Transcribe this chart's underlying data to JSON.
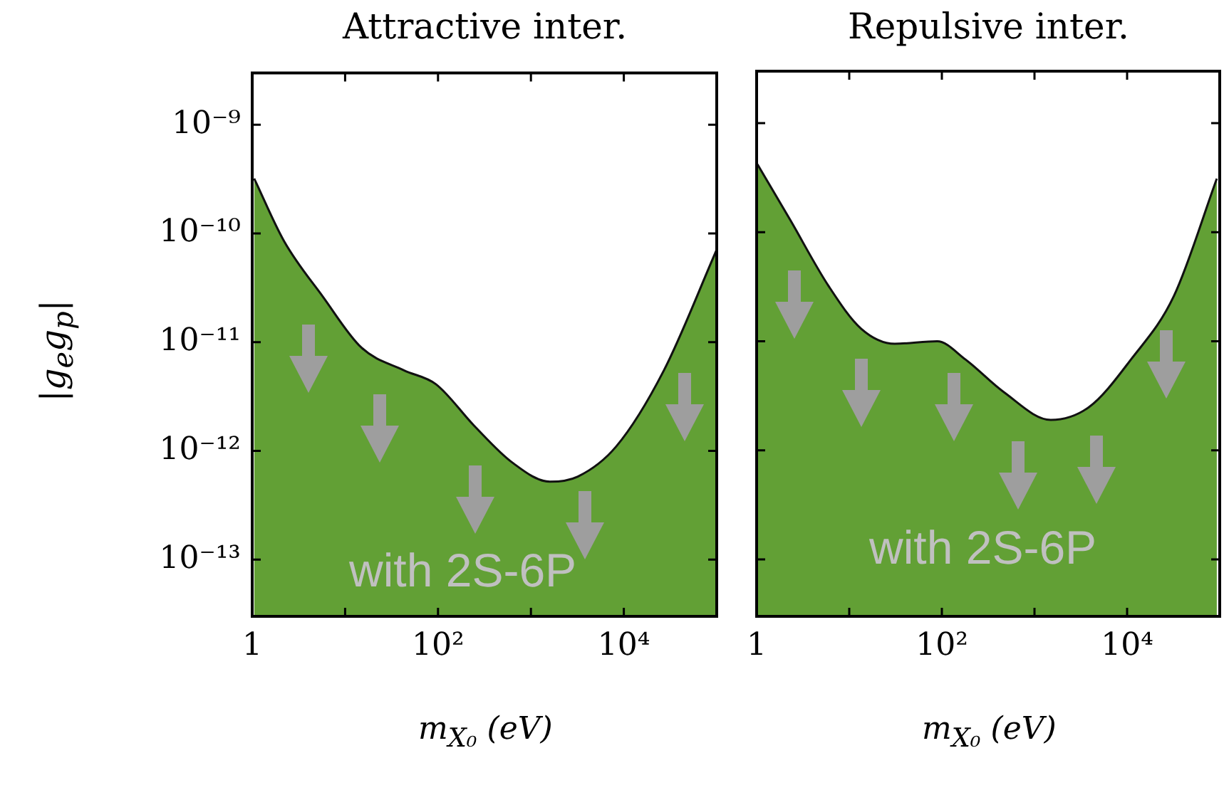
{
  "chart_data": [
    {
      "type": "area",
      "title": "Attractive inter.",
      "xlabel": "m$_{X₀}$ (eV)",
      "ylabel": "|g$_{e}$g$_{p}$|",
      "log": "xy",
      "xlim": [
        1,
        100000
      ],
      "ylim": [
        3e-14,
        3e-09
      ],
      "xticks": [
        {
          "value": 1,
          "label": "1"
        },
        {
          "value": 10,
          "label": null
        },
        {
          "value": 100,
          "label": "10²"
        },
        {
          "value": 1000,
          "label": null
        },
        {
          "value": 10000,
          "label": "10⁴"
        }
      ],
      "yticks": [
        {
          "value": 1e-13,
          "label": "10⁻¹³"
        },
        {
          "value": 1e-12,
          "label": "10⁻¹²"
        },
        {
          "value": 1e-11,
          "label": "10⁻¹¹"
        },
        {
          "value": 1e-10,
          "label": "10⁻¹⁰"
        },
        {
          "value": 1e-09,
          "label": "10⁻⁹"
        }
      ],
      "annotations": [
        "with 2S-6P"
      ],
      "series": [
        {
          "color": "#62a035",
          "x": [
            1.05,
            2.2,
            5.8,
            15,
            43,
            95,
            245,
            630,
            1600,
            3200,
            8300,
            27000,
            100000
          ],
          "values": [
            3.2e-10,
            8.5e-11,
            2.6e-11,
            8.9e-12,
            5.5e-12,
            4.1e-12,
            1.7e-12,
            7.8e-13,
            5.2e-13,
            5.8e-13,
            1.1e-12,
            5.5e-12,
            7.1e-11
          ]
        }
      ]
    },
    {
      "type": "area",
      "title": "Repulsive inter.",
      "xlabel": "m$_{X₀}$ (eV)",
      "log": "xy",
      "xlim": [
        1,
        100000
      ],
      "ylim": [
        3e-14,
        3e-09
      ],
      "tick_labels": "x",
      "xticks": [
        {
          "value": 1,
          "label": "1"
        },
        {
          "value": 10,
          "label": null
        },
        {
          "value": 100,
          "label": "10²"
        },
        {
          "value": 1000,
          "label": null
        },
        {
          "value": 10000,
          "label": "10⁴"
        }
      ],
      "yticks": [
        {
          "value": 1e-13,
          "label": null
        },
        {
          "value": 1e-12,
          "label": null
        },
        {
          "value": 1e-11,
          "label": null
        },
        {
          "value": 1e-10,
          "label": null
        },
        {
          "value": 1e-09,
          "label": null
        }
      ],
      "annotations": [
        "with 2S-6P"
      ],
      "series": [
        {
          "color": "#62a035",
          "x": [
            1.02,
            2.3,
            6,
            13.5,
            31,
            89,
            180,
            470,
            1500,
            3900,
            11000,
            32000,
            93000
          ],
          "values": [
            4.2e-10,
            1.3e-10,
            3.2e-11,
            1.3e-11,
            9.5e-12,
            1e-11,
            6.8e-12,
            3.4e-12,
            1.9e-12,
            2.5e-12,
            6.8e-12,
            2.6e-11,
            3.1e-10
          ]
        }
      ]
    }
  ]
}
